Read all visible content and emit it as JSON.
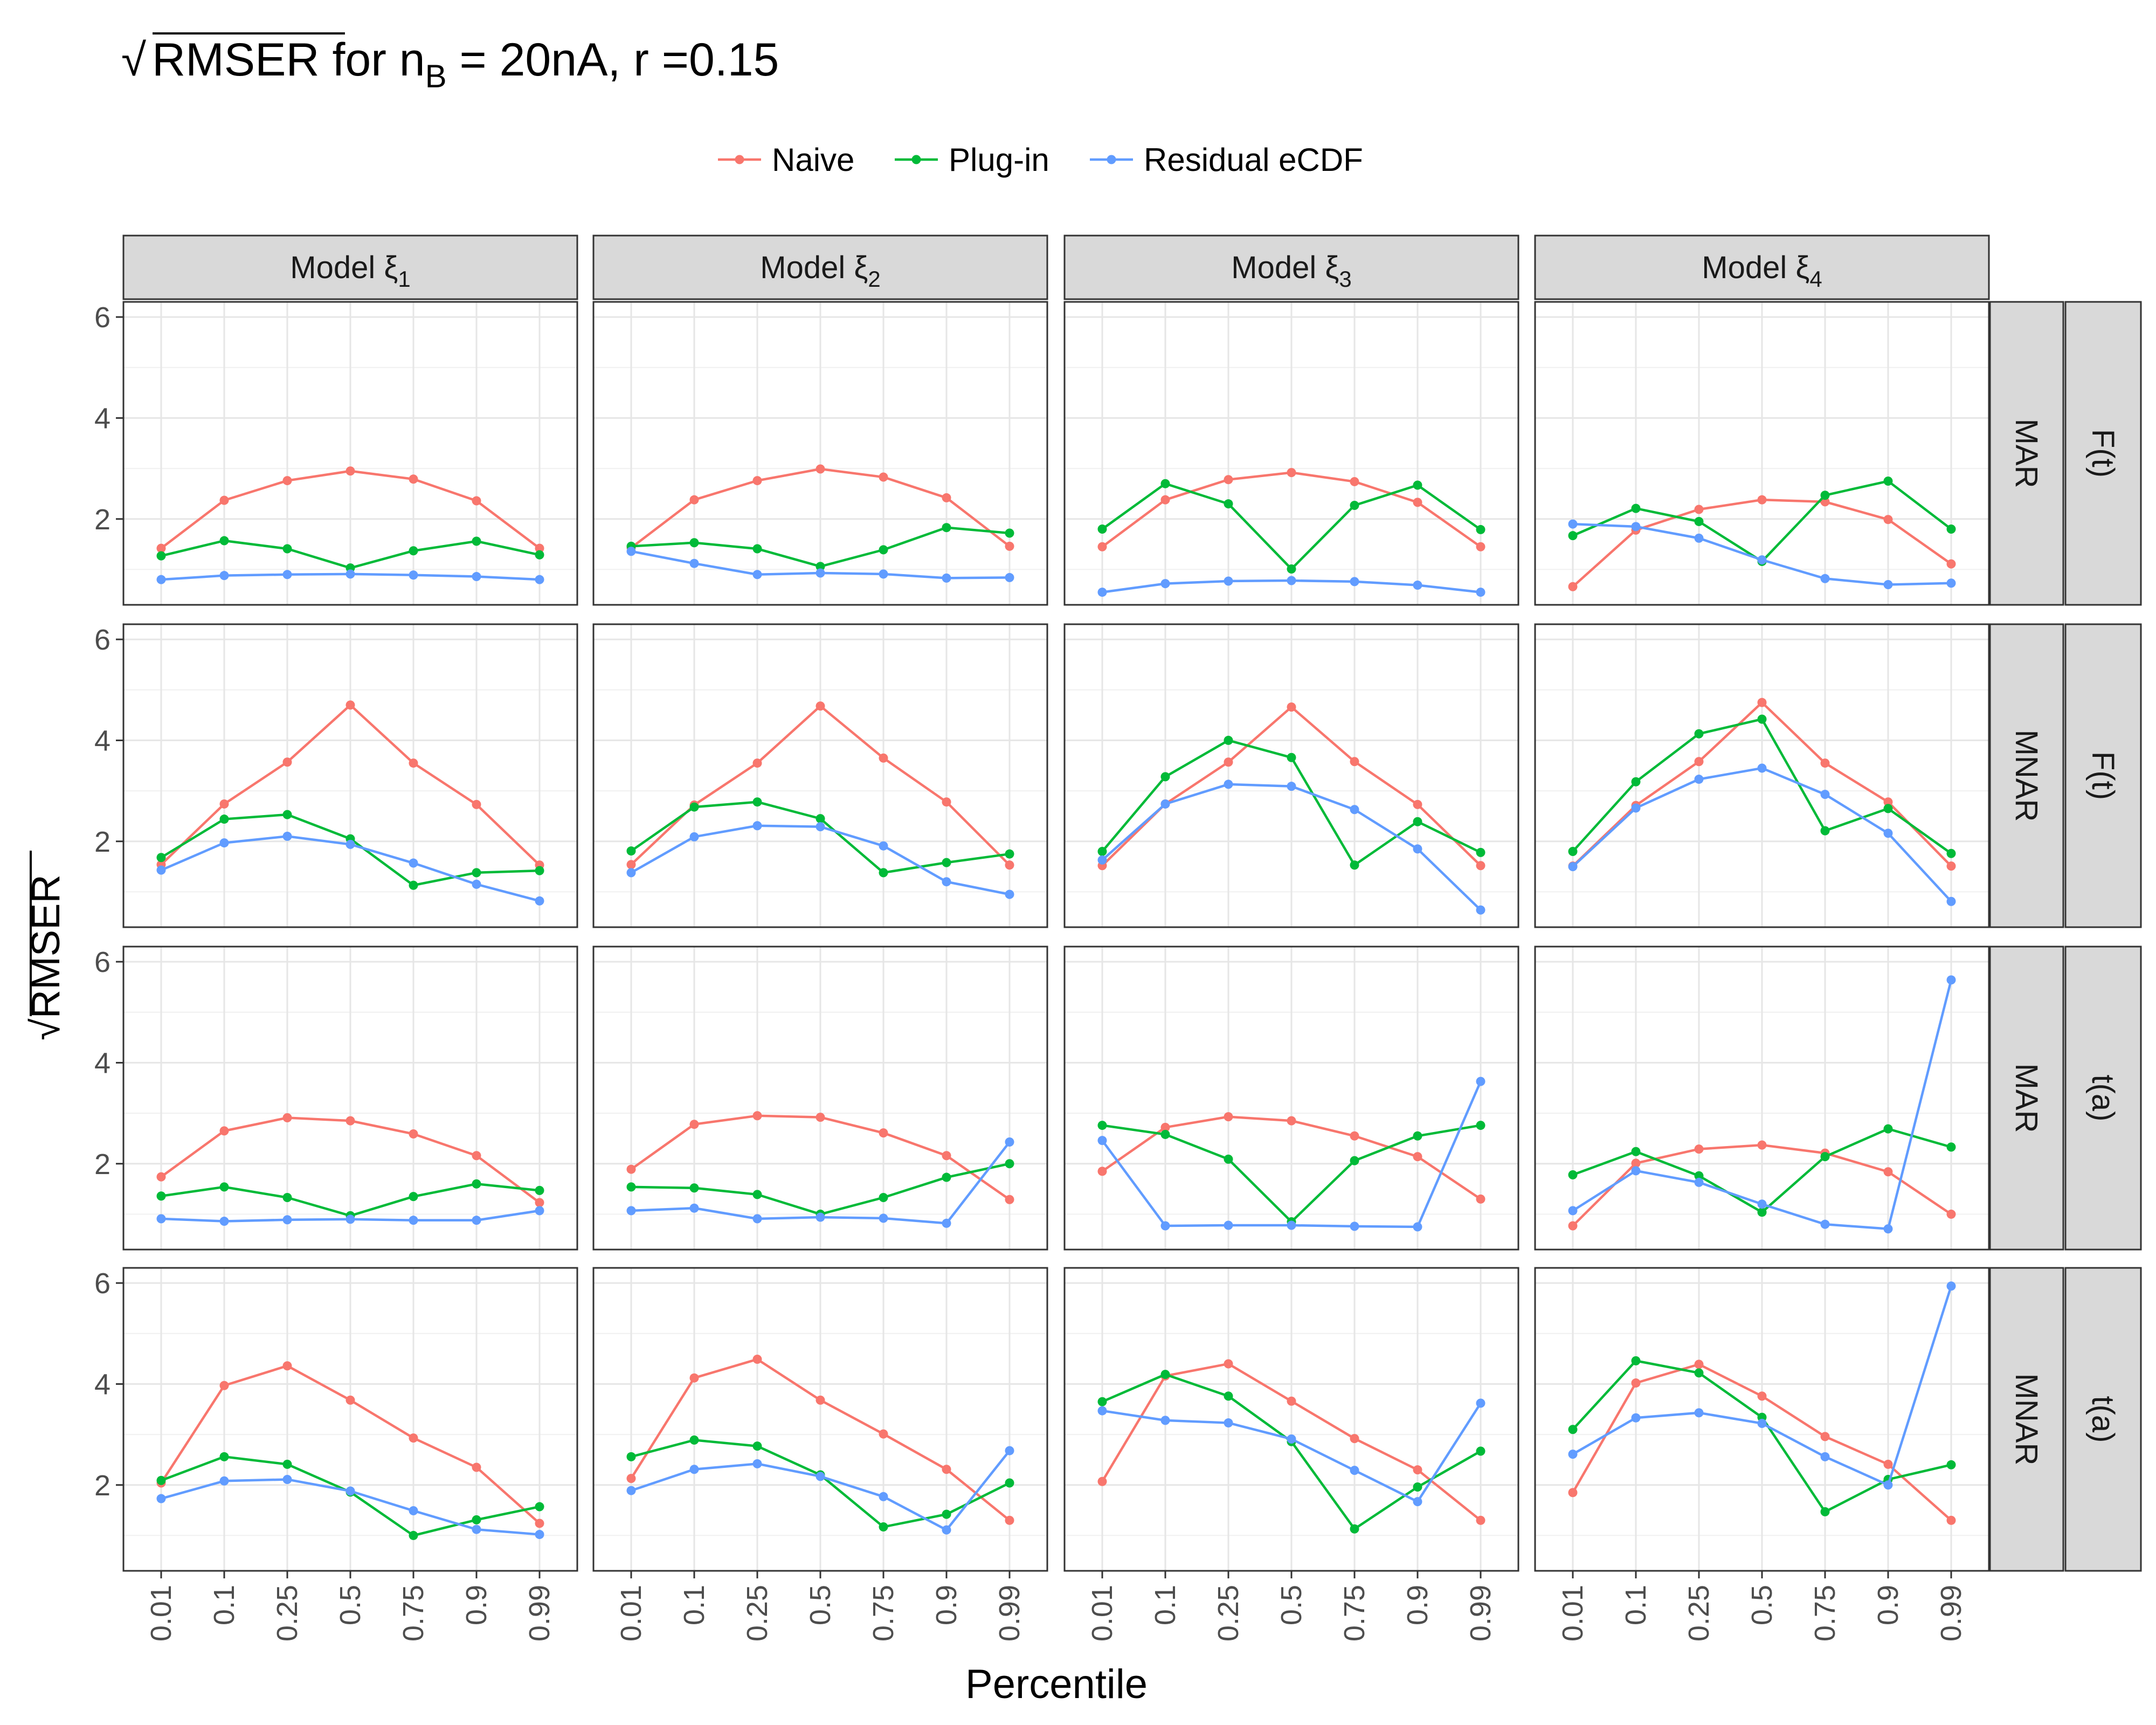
{
  "chart_data": {
    "type": "line",
    "title": {
      "radical": "√",
      "main": "RMSER",
      "for_text": " for n",
      "subscript": "B",
      "after": " = 20nA, r =0.15"
    },
    "xlabel": "Percentile",
    "ylabel": "RMSER",
    "ylabel_radical": "√",
    "x_categories": [
      "0.01",
      "0.1",
      "0.25",
      "0.5",
      "0.75",
      "0.9",
      "0.99"
    ],
    "y_ticks": [
      2,
      4,
      6
    ],
    "ylim": [
      0.3,
      6.3
    ],
    "grid": true,
    "legend_position": "top",
    "series_names": [
      "Naive",
      "Plug-in",
      "Residual eCDF"
    ],
    "series_colors": {
      "Naive": "#F8766D",
      "Plug-in": "#00BA38",
      "Residual eCDF": "#619CFF"
    },
    "col_strips": [
      {
        "base": "Model ξ",
        "sub": "1"
      },
      {
        "base": "Model ξ",
        "sub": "2"
      },
      {
        "base": "Model ξ",
        "sub": "3"
      },
      {
        "base": "Model ξ",
        "sub": "4"
      }
    ],
    "row_strips": [
      {
        "outer": "F(t)",
        "inner": "MAR"
      },
      {
        "outer": "F(t)",
        "inner": "MNAR"
      },
      {
        "outer": "t(a)",
        "inner": "MAR"
      },
      {
        "outer": "t(a)",
        "inner": "MNAR"
      }
    ],
    "panels": [
      [
        {
          "Naive": [
            1.42,
            2.37,
            2.76,
            2.95,
            2.79,
            2.36,
            1.42
          ],
          "Plug-in": [
            1.27,
            1.57,
            1.41,
            1.03,
            1.37,
            1.56,
            1.29
          ],
          "Residual eCDF": [
            0.8,
            0.88,
            0.9,
            0.91,
            0.89,
            0.86,
            0.8
          ]
        },
        {
          "Naive": [
            1.43,
            2.38,
            2.76,
            2.99,
            2.83,
            2.42,
            1.46
          ],
          "Plug-in": [
            1.46,
            1.53,
            1.41,
            1.06,
            1.39,
            1.83,
            1.72
          ],
          "Residual eCDF": [
            1.36,
            1.12,
            0.9,
            0.93,
            0.91,
            0.83,
            0.84
          ]
        },
        {
          "Naive": [
            1.45,
            2.38,
            2.78,
            2.92,
            2.74,
            2.33,
            1.45
          ],
          "Plug-in": [
            1.8,
            2.7,
            2.3,
            1.01,
            2.27,
            2.67,
            1.79
          ],
          "Residual eCDF": [
            0.55,
            0.72,
            0.77,
            0.78,
            0.76,
            0.69,
            0.55
          ]
        },
        {
          "Naive": [
            0.66,
            1.78,
            2.19,
            2.38,
            2.34,
            1.99,
            1.11
          ],
          "Plug-in": [
            1.67,
            2.21,
            1.95,
            1.16,
            2.47,
            2.75,
            1.8
          ],
          "Residual eCDF": [
            1.9,
            1.85,
            1.62,
            1.19,
            0.82,
            0.7,
            0.73
          ]
        }
      ],
      [
        {
          "Naive": [
            1.54,
            2.74,
            3.57,
            4.7,
            3.55,
            2.73,
            1.53
          ],
          "Plug-in": [
            1.68,
            2.44,
            2.53,
            2.05,
            1.13,
            1.38,
            1.42
          ],
          "Residual eCDF": [
            1.43,
            1.97,
            2.1,
            1.94,
            1.57,
            1.15,
            0.82
          ]
        },
        {
          "Naive": [
            1.54,
            2.72,
            3.55,
            4.68,
            3.65,
            2.78,
            1.53
          ],
          "Plug-in": [
            1.81,
            2.68,
            2.78,
            2.45,
            1.38,
            1.58,
            1.75
          ],
          "Residual eCDF": [
            1.38,
            2.09,
            2.31,
            2.29,
            1.91,
            1.2,
            0.95
          ]
        },
        {
          "Naive": [
            1.52,
            2.74,
            3.57,
            4.66,
            3.58,
            2.73,
            1.52
          ],
          "Plug-in": [
            1.8,
            3.28,
            4.0,
            3.66,
            1.53,
            2.39,
            1.78
          ],
          "Residual eCDF": [
            1.63,
            2.74,
            3.13,
            3.09,
            2.63,
            1.85,
            0.64
          ]
        },
        {
          "Naive": [
            1.51,
            2.71,
            3.58,
            4.75,
            3.55,
            2.78,
            1.51
          ],
          "Plug-in": [
            1.8,
            3.18,
            4.13,
            4.42,
            2.21,
            2.65,
            1.76
          ],
          "Residual eCDF": [
            1.5,
            2.66,
            3.23,
            3.45,
            2.93,
            2.16,
            0.81
          ]
        }
      ],
      [
        {
          "Naive": [
            1.74,
            2.65,
            2.91,
            2.85,
            2.59,
            2.16,
            1.23
          ],
          "Plug-in": [
            1.36,
            1.54,
            1.33,
            0.97,
            1.35,
            1.6,
            1.47
          ],
          "Residual eCDF": [
            0.91,
            0.86,
            0.89,
            0.9,
            0.88,
            0.88,
            1.07
          ]
        },
        {
          "Naive": [
            1.89,
            2.78,
            2.95,
            2.92,
            2.61,
            2.16,
            1.29
          ],
          "Plug-in": [
            1.54,
            1.52,
            1.39,
            1.0,
            1.33,
            1.73,
            2.0
          ],
          "Residual eCDF": [
            1.07,
            1.12,
            0.91,
            0.94,
            0.92,
            0.82,
            2.43
          ]
        },
        {
          "Naive": [
            1.85,
            2.72,
            2.93,
            2.85,
            2.55,
            2.14,
            1.3
          ],
          "Plug-in": [
            2.76,
            2.58,
            2.09,
            0.85,
            2.06,
            2.55,
            2.76
          ],
          "Residual eCDF": [
            2.46,
            0.77,
            0.78,
            0.78,
            0.76,
            0.75,
            3.63
          ]
        },
        {
          "Naive": [
            0.77,
            2.01,
            2.29,
            2.37,
            2.21,
            1.84,
            1.0
          ],
          "Plug-in": [
            1.78,
            2.24,
            1.76,
            1.04,
            2.14,
            2.69,
            2.33
          ],
          "Residual eCDF": [
            1.07,
            1.86,
            1.63,
            1.2,
            0.8,
            0.71,
            5.64
          ]
        }
      ],
      [
        {
          "Naive": [
            2.04,
            3.97,
            4.36,
            3.68,
            2.93,
            2.35,
            1.24
          ],
          "Plug-in": [
            2.09,
            2.56,
            2.41,
            1.86,
            1.0,
            1.31,
            1.57
          ],
          "Residual eCDF": [
            1.73,
            2.08,
            2.11,
            1.88,
            1.49,
            1.12,
            1.02
          ]
        },
        {
          "Naive": [
            2.13,
            4.12,
            4.49,
            3.68,
            3.01,
            2.31,
            1.3
          ],
          "Plug-in": [
            2.56,
            2.89,
            2.77,
            2.2,
            1.17,
            1.42,
            2.04
          ],
          "Residual eCDF": [
            1.89,
            2.31,
            2.42,
            2.17,
            1.77,
            1.11,
            2.68
          ]
        },
        {
          "Naive": [
            2.07,
            4.16,
            4.4,
            3.66,
            2.92,
            2.3,
            1.3
          ],
          "Plug-in": [
            3.65,
            4.19,
            3.76,
            2.86,
            1.13,
            1.96,
            2.67
          ],
          "Residual eCDF": [
            3.47,
            3.28,
            3.23,
            2.91,
            2.29,
            1.67,
            3.62
          ]
        },
        {
          "Naive": [
            1.85,
            4.02,
            4.39,
            3.76,
            2.96,
            2.41,
            1.3
          ],
          "Plug-in": [
            3.1,
            4.46,
            4.22,
            3.34,
            1.47,
            2.11,
            2.4
          ],
          "Residual eCDF": [
            2.61,
            3.33,
            3.43,
            3.22,
            2.56,
            2.0,
            5.94
          ]
        }
      ]
    ]
  }
}
